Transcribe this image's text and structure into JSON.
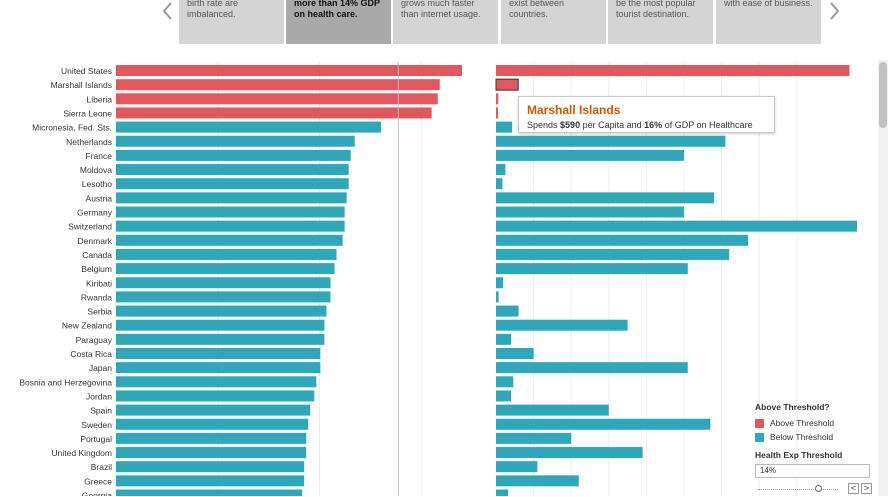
{
  "colors": {
    "above": "#e0585b",
    "below": "#2fa7bb",
    "story_bg": "#d4d4d4",
    "story_active_bg": "#a9a9a9",
    "tooltip_title": "#d35400"
  },
  "story": {
    "prev_icon": "chevron-left-icon",
    "next_icon": "chevron-right-icon",
    "points": [
      {
        "lines": [
          "birth rate are",
          "imbalanced."
        ],
        "active": false
      },
      {
        "lines": [
          "more than 14% GDP",
          "on health care."
        ],
        "active": true
      },
      {
        "lines": [
          "grows much faster",
          "than internet usage."
        ],
        "active": false
      },
      {
        "lines": [
          "exist between",
          "countries."
        ],
        "active": false
      },
      {
        "lines": [
          "be the most popular",
          "tourist destination."
        ],
        "active": false
      },
      {
        "lines": [
          "with ease of business."
        ],
        "active": false
      }
    ]
  },
  "chart_data": {
    "type": "bar",
    "orientation": "horizontal",
    "categories": [
      "United States",
      "Marshall Islands",
      "Liberia",
      "Sierra Leone",
      "Micronesia, Fed. Sts.",
      "Netherlands",
      "France",
      "Moldova",
      "Lesotho",
      "Austria",
      "Germany",
      "Switzerland",
      "Denmark",
      "Canada",
      "Belgium",
      "Kiribati",
      "Rwanda",
      "Serbia",
      "New Zealand",
      "Paraguay",
      "Costa Rica",
      "Japan",
      "Bosnia and Herzegovina",
      "Jordan",
      "Spain",
      "Sweden",
      "Portugal",
      "United Kingdom",
      "Brazil",
      "Greece",
      "Georgia"
    ],
    "above_threshold": [
      true,
      true,
      true,
      true,
      false,
      false,
      false,
      false,
      false,
      false,
      false,
      false,
      false,
      false,
      false,
      false,
      false,
      false,
      false,
      false,
      false,
      false,
      false,
      false,
      false,
      false,
      false,
      false,
      false,
      false,
      false
    ],
    "series": [
      {
        "values": [
          17.1,
          16.0,
          15.9,
          15.6,
          13.1,
          11.8,
          11.6,
          11.5,
          11.5,
          11.4,
          11.3,
          11.3,
          11.2,
          10.9,
          10.8,
          10.6,
          10.6,
          10.4,
          10.3,
          10.3,
          10.1,
          10.1,
          9.9,
          9.8,
          9.6,
          9.5,
          9.4,
          9.4,
          9.3,
          9.3,
          9.2
        ]
      },
      {
        "values": [
          9400,
          590,
          60,
          45,
          430,
          6100,
          5000,
          250,
          170,
          5800,
          5000,
          9600,
          6700,
          6200,
          5100,
          190,
          70,
          600,
          3500,
          400,
          1000,
          5100,
          460,
          400,
          3000,
          5700,
          2000,
          3900,
          1100,
          2200,
          320
        ]
      }
    ],
    "threshold_marker": 14,
    "grid": true,
    "legend_placement": "bottom-right"
  },
  "tooltip": {
    "title": "Marshall Islands",
    "prefix": "Spends",
    "spend": "$590",
    "mid": "per Capita and",
    "pct": "16%",
    "suffix": "of GDP on Healthcare"
  },
  "legend": {
    "title": "Above Threshold?",
    "items": [
      {
        "label": "Above Threshold",
        "color": "#e0585b"
      },
      {
        "label": "Below Threshold",
        "color": "#2fa7bb"
      }
    ]
  },
  "threshold": {
    "title": "Health Exp Threshold",
    "value": "14%",
    "decrement": "<",
    "increment": ">",
    "slider_fraction": 0.75
  }
}
